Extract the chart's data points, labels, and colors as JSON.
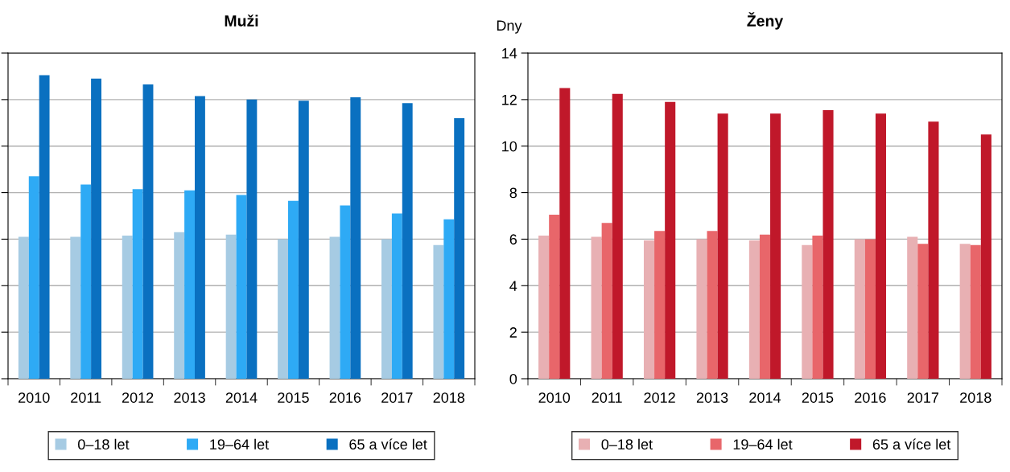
{
  "chart_data": [
    {
      "type": "bar",
      "title": "Muži",
      "categories": [
        "2010",
        "2011",
        "2012",
        "2013",
        "2014",
        "2015",
        "2016",
        "2017",
        "2018"
      ],
      "ylim": [
        0,
        14
      ],
      "yticks": [
        0,
        2,
        4,
        6,
        8,
        10,
        12,
        14
      ],
      "tick_labels": "x",
      "grid": "y",
      "legend": "bottom",
      "series": [
        {
          "name": "0–18 let",
          "color": "#a6cbe3",
          "values": [
            6.1,
            6.1,
            6.15,
            6.3,
            6.2,
            6.0,
            6.1,
            6.0,
            5.75
          ]
        },
        {
          "name": "19–64 let",
          "color": "#2eaaf5",
          "values": [
            8.7,
            8.35,
            8.15,
            8.1,
            7.9,
            7.65,
            7.45,
            7.1,
            6.85
          ]
        },
        {
          "name": "65 a více let",
          "color": "#0a70c0",
          "values": [
            13.05,
            12.9,
            12.65,
            12.15,
            12.0,
            11.95,
            12.1,
            11.85,
            11.2
          ]
        }
      ]
    },
    {
      "type": "bar",
      "title": "Ženy",
      "ylabel": "Dny",
      "categories": [
        "2010",
        "2011",
        "2012",
        "2013",
        "2014",
        "2015",
        "2016",
        "2017",
        "2018"
      ],
      "ylim": [
        0,
        14
      ],
      "yticks": [
        0,
        2,
        4,
        6,
        8,
        10,
        12,
        14
      ],
      "grid": "y",
      "legend": "bottom",
      "series": [
        {
          "name": "0–18 let",
          "color": "#e8b0b3",
          "values": [
            6.15,
            6.1,
            5.95,
            6.0,
            5.95,
            5.75,
            6.0,
            6.1,
            5.8
          ]
        },
        {
          "name": "19–64 let",
          "color": "#e8666a",
          "values": [
            7.05,
            6.7,
            6.35,
            6.35,
            6.2,
            6.15,
            6.0,
            5.8,
            5.75
          ]
        },
        {
          "name": "65 a více let",
          "color": "#c0182a",
          "values": [
            12.5,
            12.25,
            11.9,
            11.4,
            11.4,
            11.55,
            11.4,
            11.05,
            10.5
          ]
        }
      ]
    }
  ]
}
